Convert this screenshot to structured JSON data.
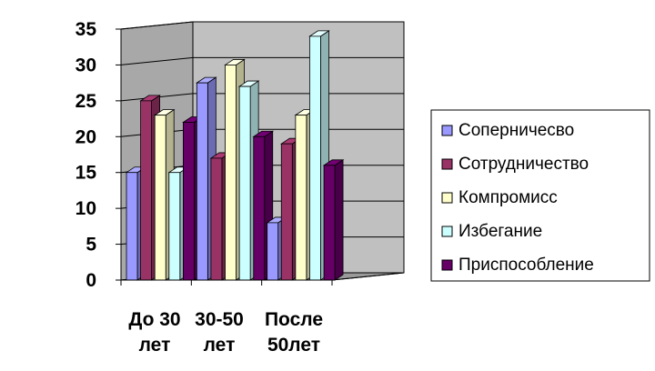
{
  "chart_data": {
    "type": "bar",
    "style": "3d-clustered-column",
    "categories": [
      [
        "До 30",
        "лет"
      ],
      [
        "30-50",
        "лет"
      ],
      [
        "После",
        "50лет"
      ]
    ],
    "series": [
      {
        "name": "Соперничесво",
        "values": [
          15,
          27.5,
          8
        ],
        "color": "#9999ff"
      },
      {
        "name": "Сотрудничество",
        "values": [
          25,
          17,
          19
        ],
        "color": "#993366"
      },
      {
        "name": "Компромисс",
        "values": [
          23,
          30,
          23
        ],
        "color": "#ffffcc"
      },
      {
        "name": "Избегание",
        "values": [
          15,
          27,
          34
        ],
        "color": "#ccffff"
      },
      {
        "name": "Приспособление",
        "values": [
          22,
          20,
          16
        ],
        "color": "#660066"
      }
    ],
    "ylim": [
      0,
      35
    ],
    "yticks": [
      0,
      5,
      10,
      15,
      20,
      25,
      30,
      35
    ],
    "grid": true,
    "legend_position": "right",
    "plot_background": "#c0c0c0"
  }
}
